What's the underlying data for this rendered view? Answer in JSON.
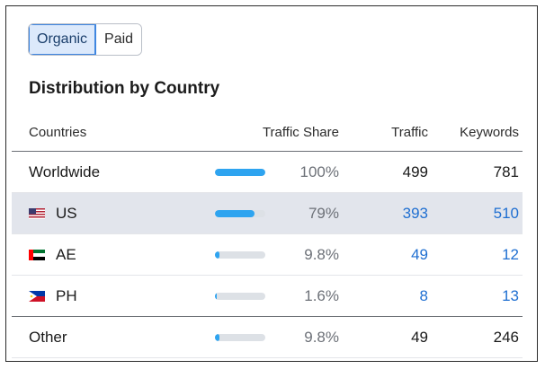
{
  "toggle": {
    "organic": "Organic",
    "paid": "Paid"
  },
  "section_title": "Distribution by Country",
  "columns": {
    "countries": "Countries",
    "traffic_share": "Traffic Share",
    "traffic": "Traffic",
    "keywords": "Keywords"
  },
  "rows": [
    {
      "country": "Worldwide",
      "share_label": "100%",
      "share": 100,
      "traffic": "499",
      "keywords": "781",
      "flag": ""
    },
    {
      "country": "US",
      "share_label": "79%",
      "share": 79,
      "traffic": "393",
      "keywords": "510",
      "flag": "us-flag-icon"
    },
    {
      "country": "AE",
      "share_label": "9.8%",
      "share": 9.8,
      "traffic": "49",
      "keywords": "12",
      "flag": "ae-flag-icon"
    },
    {
      "country": "PH",
      "share_label": "1.6%",
      "share": 1.6,
      "traffic": "8",
      "keywords": "13",
      "flag": "ph-flag-icon"
    },
    {
      "country": "Other",
      "share_label": "9.8%",
      "share": 9.8,
      "traffic": "49",
      "keywords": "246",
      "flag": ""
    }
  ],
  "colors": {
    "bar_fill": "#2ea4f0",
    "bar_track": "#dde1e6",
    "link": "#1f6fd1",
    "highlight_row": "#e2e5ec"
  }
}
